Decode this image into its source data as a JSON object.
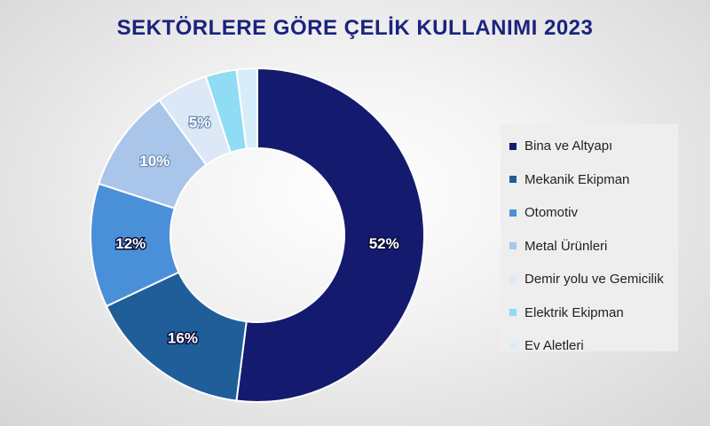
{
  "chart_data": {
    "type": "pie",
    "title": "SEKTÖRLERE GÖRE ÇELİK KULLANIMI 2023",
    "categories": [
      "Bina ve Altyapı",
      "Mekanik Ekipman",
      "Otomotiv",
      "Metal Ürünleri",
      "Demir yolu ve Gemicilik",
      "Elektrik Ekipman",
      "Ev Aletleri"
    ],
    "values": [
      52,
      16,
      12,
      10,
      5,
      3,
      2
    ],
    "labels": [
      "52%",
      "16%",
      "12%",
      "10%",
      "5%",
      "",
      ""
    ],
    "colors": [
      "#141b6e",
      "#1f5e99",
      "#4a90d9",
      "#a9c6ea",
      "#dce8f5",
      "#8fdcf4",
      "#d5eef9"
    ],
    "donut": true,
    "legend_position": "right"
  }
}
